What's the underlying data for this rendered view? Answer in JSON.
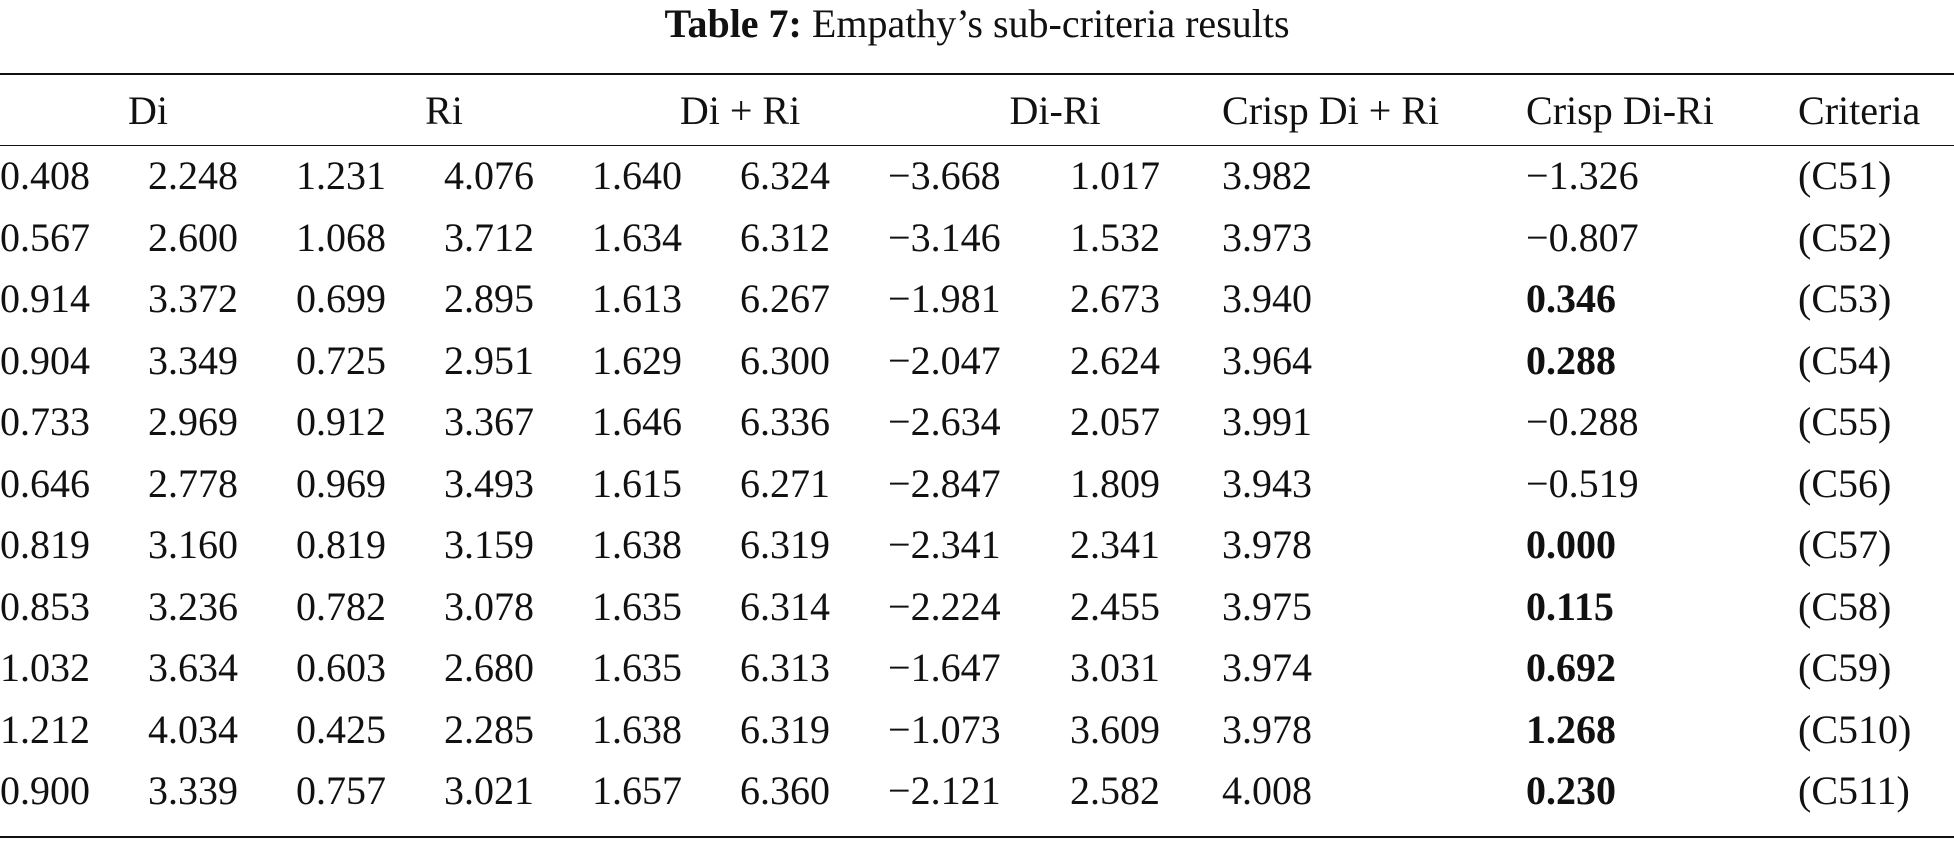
{
  "caption": {
    "label": "Table 7:",
    "text": "Empathy’s sub-criteria results"
  },
  "headers": {
    "di": "Di",
    "ri": "Ri",
    "di_plus_ri": "Di + Ri",
    "di_minus_ri": "Di-Ri",
    "crisp_di_plus_ri": "Crisp Di + Ri",
    "crisp_di_minus_ri": "Crisp Di-Ri",
    "criteria": "Criteria"
  },
  "rows": [
    {
      "di_l": "0.408",
      "di_u": "2.248",
      "ri_l": "1.231",
      "ri_u": "4.076",
      "dpr_l": "1.640",
      "dpr_u": "6.324",
      "dmr_l": "−3.668",
      "dmr_u": "1.017",
      "crisp_dpr": "3.982",
      "crisp_dmr": "−1.326",
      "criteria": "(C51)"
    },
    {
      "di_l": "0.567",
      "di_u": "2.600",
      "ri_l": "1.068",
      "ri_u": "3.712",
      "dpr_l": "1.634",
      "dpr_u": "6.312",
      "dmr_l": "−3.146",
      "dmr_u": "1.532",
      "crisp_dpr": "3.973",
      "crisp_dmr": "−0.807",
      "criteria": "(C52)"
    },
    {
      "di_l": "0.914",
      "di_u": "3.372",
      "ri_l": "0.699",
      "ri_u": "2.895",
      "dpr_l": "1.613",
      "dpr_u": "6.267",
      "dmr_l": "−1.981",
      "dmr_u": "2.673",
      "crisp_dpr": "3.940",
      "crisp_dmr": "0.346",
      "criteria": "(C53)"
    },
    {
      "di_l": "0.904",
      "di_u": "3.349",
      "ri_l": "0.725",
      "ri_u": "2.951",
      "dpr_l": "1.629",
      "dpr_u": "6.300",
      "dmr_l": "−2.047",
      "dmr_u": "2.624",
      "crisp_dpr": "3.964",
      "crisp_dmr": "0.288",
      "criteria": "(C54)"
    },
    {
      "di_l": "0.733",
      "di_u": "2.969",
      "ri_l": "0.912",
      "ri_u": "3.367",
      "dpr_l": "1.646",
      "dpr_u": "6.336",
      "dmr_l": "−2.634",
      "dmr_u": "2.057",
      "crisp_dpr": "3.991",
      "crisp_dmr": "−0.288",
      "criteria": "(C55)"
    },
    {
      "di_l": "0.646",
      "di_u": "2.778",
      "ri_l": "0.969",
      "ri_u": "3.493",
      "dpr_l": "1.615",
      "dpr_u": "6.271",
      "dmr_l": "−2.847",
      "dmr_u": "1.809",
      "crisp_dpr": "3.943",
      "crisp_dmr": "−0.519",
      "criteria": "(C56)"
    },
    {
      "di_l": "0.819",
      "di_u": "3.160",
      "ri_l": "0.819",
      "ri_u": "3.159",
      "dpr_l": "1.638",
      "dpr_u": "6.319",
      "dmr_l": "−2.341",
      "dmr_u": "2.341",
      "crisp_dpr": "3.978",
      "crisp_dmr": "0.000",
      "criteria": "(C57)"
    },
    {
      "di_l": "0.853",
      "di_u": "3.236",
      "ri_l": "0.782",
      "ri_u": "3.078",
      "dpr_l": "1.635",
      "dpr_u": "6.314",
      "dmr_l": "−2.224",
      "dmr_u": "2.455",
      "crisp_dpr": "3.975",
      "crisp_dmr": "0.115",
      "criteria": "(C58)"
    },
    {
      "di_l": "1.032",
      "di_u": "3.634",
      "ri_l": "0.603",
      "ri_u": "2.680",
      "dpr_l": "1.635",
      "dpr_u": "6.313",
      "dmr_l": "−1.647",
      "dmr_u": "3.031",
      "crisp_dpr": "3.974",
      "crisp_dmr": "0.692",
      "criteria": "(C59)"
    },
    {
      "di_l": "1.212",
      "di_u": "4.034",
      "ri_l": "0.425",
      "ri_u": "2.285",
      "dpr_l": "1.638",
      "dpr_u": "6.319",
      "dmr_l": "−1.073",
      "dmr_u": "3.609",
      "crisp_dpr": "3.978",
      "crisp_dmr": "1.268",
      "criteria": "(C510)"
    },
    {
      "di_l": "0.900",
      "di_u": "3.339",
      "ri_l": "0.757",
      "ri_u": "3.021",
      "dpr_l": "1.657",
      "dpr_u": "6.360",
      "dmr_l": "−2.121",
      "dmr_u": "2.582",
      "crisp_dpr": "4.008",
      "crisp_dmr": "0.230",
      "criteria": "(C511)"
    }
  ],
  "bold_cells": {
    "crisp_dmr_positive_rows": [
      2,
      3,
      6,
      7,
      8,
      9,
      10
    ]
  }
}
